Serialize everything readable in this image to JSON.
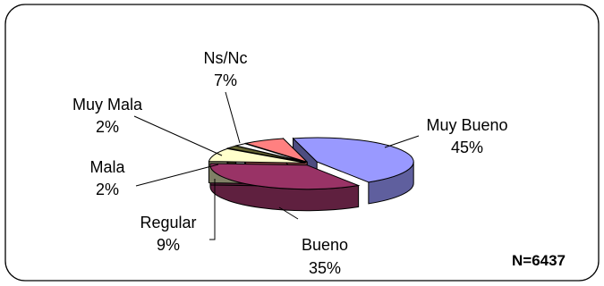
{
  "chart_data": {
    "type": "pie",
    "style": "3d-exploded",
    "slices": [
      {
        "label": "Muy Bueno",
        "value": 45,
        "pct_label": "45%",
        "color": "#9999FF"
      },
      {
        "label": "Bueno",
        "value": 35,
        "pct_label": "35%",
        "color": "#993366"
      },
      {
        "label": "Regular",
        "value": 9,
        "pct_label": "9%",
        "color": "#FFFFCC"
      },
      {
        "label": "Mala",
        "value": 2,
        "pct_label": "2%",
        "color": "#666633"
      },
      {
        "label": "Muy Mala",
        "value": 2,
        "pct_label": "2%",
        "color": "#FFFFFF"
      },
      {
        "label": "Ns/Nc",
        "value": 7,
        "pct_label": "7%",
        "color": "#FF8080"
      }
    ],
    "annotation": "N=6437",
    "legend": "none"
  }
}
